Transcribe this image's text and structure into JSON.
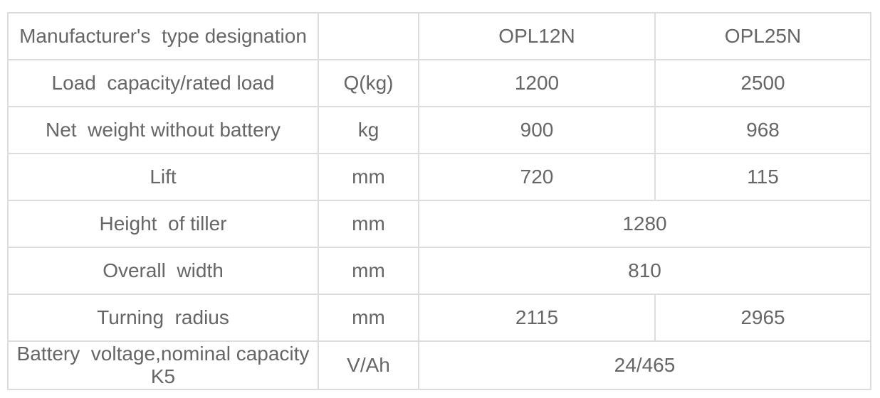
{
  "colors": {
    "border": "#dcdcdc",
    "text": "#666666",
    "background": "#ffffff"
  },
  "table": {
    "header": {
      "label": "Manufacturer's  type designation",
      "unit": "",
      "model1": "OPL12N",
      "model2": "OPL25N"
    },
    "rows": [
      {
        "label": "Load  capacity/rated load",
        "unit": "Q(kg)",
        "value1": "1200",
        "value2": "2500"
      },
      {
        "label": "Net  weight without battery",
        "unit": "kg",
        "value1": "900",
        "value2": "968"
      },
      {
        "label": "Lift",
        "unit": "mm",
        "value1": "720",
        "value2": "115"
      },
      {
        "label": "Height  of tiller",
        "unit": "mm",
        "merged": "1280"
      },
      {
        "label": "Overall  width",
        "unit": "mm",
        "merged": "810"
      },
      {
        "label": "Turning  radius",
        "unit": "mm",
        "value1": "2115",
        "value2": "2965"
      },
      {
        "label": "Battery  voltage,nominal capacity K5",
        "unit": "V/Ah",
        "merged": "24/465"
      }
    ]
  }
}
